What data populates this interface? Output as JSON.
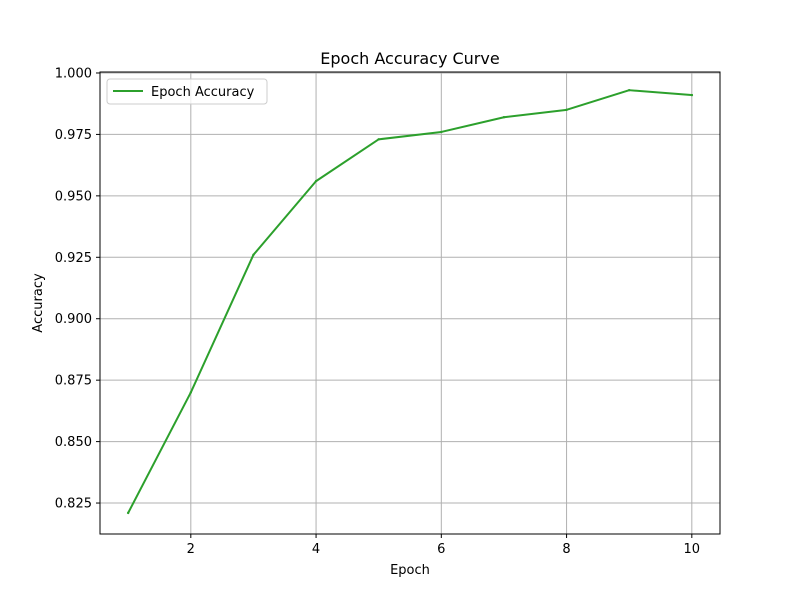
{
  "chart_data": {
    "type": "line",
    "title": "Epoch Accuracy Curve",
    "xlabel": "Epoch",
    "ylabel": "Accuracy",
    "x": [
      1,
      2,
      3,
      4,
      5,
      6,
      7,
      8,
      9,
      10
    ],
    "series": [
      {
        "name": "Epoch Accuracy",
        "color": "#2ca02c",
        "values": [
          0.821,
          0.87,
          0.926,
          0.956,
          0.973,
          0.976,
          0.982,
          0.985,
          0.993,
          0.991
        ]
      }
    ],
    "xlim": [
      0.55,
      10.45
    ],
    "ylim": [
      0.8124,
      1.0004
    ],
    "xticks": [
      2,
      4,
      6,
      8,
      10
    ],
    "xtick_labels": [
      "2",
      "4",
      "6",
      "8",
      "10"
    ],
    "yticks": [
      0.825,
      0.85,
      0.875,
      0.9,
      0.925,
      0.95,
      0.975,
      1.0
    ],
    "ytick_labels": [
      "0.825",
      "0.850",
      "0.875",
      "0.900",
      "0.925",
      "0.950",
      "0.975",
      "1.000"
    ],
    "grid": true,
    "legend_position": "upper-left"
  }
}
